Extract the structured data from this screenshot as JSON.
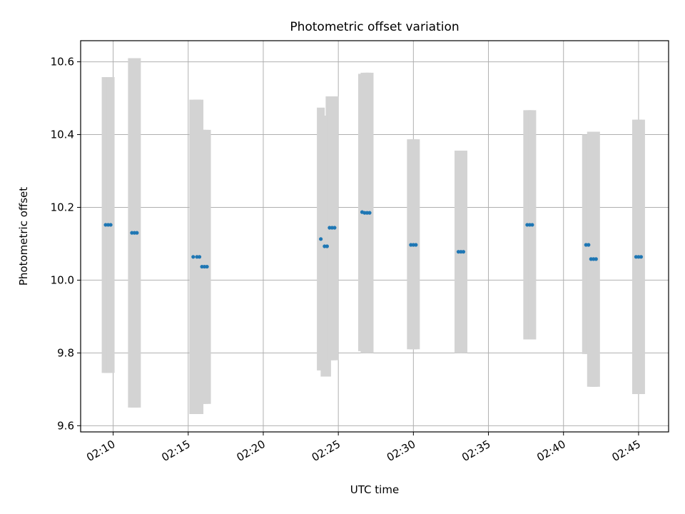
{
  "chart_data": {
    "type": "scatter",
    "title": "Photometric offset variation",
    "xlabel": "UTC time",
    "ylabel": "Photometric offset",
    "x_axis": "time",
    "xlim": [
      "02:07:50",
      "02:47:00"
    ],
    "ylim": [
      9.583,
      10.658
    ],
    "x_ticks": [
      "02:10",
      "02:15",
      "02:20",
      "02:25",
      "02:30",
      "02:35",
      "02:40",
      "02:45"
    ],
    "y_ticks": [
      9.6,
      9.8,
      10.0,
      10.2,
      10.4,
      10.6
    ],
    "y_tick_labels": [
      "9.6",
      "9.8",
      "10.0",
      "10.2",
      "10.4",
      "10.6"
    ],
    "grid": true,
    "colors": {
      "marker": "#1f77b4",
      "errorbar": "#d3d3d3",
      "grid": "#b0b0b0"
    },
    "points": [
      {
        "t": "02:09:30",
        "y": 10.152,
        "lo": 9.745,
        "hi": 10.558
      },
      {
        "t": "02:09:40",
        "y": 10.152,
        "lo": 9.745,
        "hi": 10.558
      },
      {
        "t": "02:09:50",
        "y": 10.152,
        "lo": 9.745,
        "hi": 10.558
      },
      {
        "t": "02:11:15",
        "y": 10.13,
        "lo": 9.65,
        "hi": 10.61
      },
      {
        "t": "02:11:25",
        "y": 10.13,
        "lo": 9.65,
        "hi": 10.61
      },
      {
        "t": "02:11:35",
        "y": 10.13,
        "lo": 9.65,
        "hi": 10.61
      },
      {
        "t": "02:15:20",
        "y": 10.064,
        "lo": 9.632,
        "hi": 10.496
      },
      {
        "t": "02:15:35",
        "y": 10.064,
        "lo": 9.632,
        "hi": 10.496
      },
      {
        "t": "02:15:45",
        "y": 10.064,
        "lo": 9.632,
        "hi": 10.496
      },
      {
        "t": "02:15:55",
        "y": 10.037,
        "lo": 9.66,
        "hi": 10.413
      },
      {
        "t": "02:16:05",
        "y": 10.037,
        "lo": 9.66,
        "hi": 10.413
      },
      {
        "t": "02:16:15",
        "y": 10.037,
        "lo": 9.66,
        "hi": 10.413
      },
      {
        "t": "02:23:50",
        "y": 10.113,
        "lo": 9.752,
        "hi": 10.474
      },
      {
        "t": "02:24:05",
        "y": 10.093,
        "lo": 9.735,
        "hi": 10.452
      },
      {
        "t": "02:24:15",
        "y": 10.093,
        "lo": 9.735,
        "hi": 10.452
      },
      {
        "t": "02:24:25",
        "y": 10.144,
        "lo": 9.78,
        "hi": 10.505
      },
      {
        "t": "02:24:35",
        "y": 10.144,
        "lo": 9.78,
        "hi": 10.505
      },
      {
        "t": "02:24:45",
        "y": 10.144,
        "lo": 9.78,
        "hi": 10.505
      },
      {
        "t": "02:26:35",
        "y": 10.187,
        "lo": 9.805,
        "hi": 10.567
      },
      {
        "t": "02:26:45",
        "y": 10.185,
        "lo": 9.8,
        "hi": 10.57
      },
      {
        "t": "02:26:55",
        "y": 10.185,
        "lo": 9.8,
        "hi": 10.57
      },
      {
        "t": "02:27:05",
        "y": 10.185,
        "lo": 9.8,
        "hi": 10.57
      },
      {
        "t": "02:29:50",
        "y": 10.097,
        "lo": 9.81,
        "hi": 10.387
      },
      {
        "t": "02:30:00",
        "y": 10.097,
        "lo": 9.81,
        "hi": 10.387
      },
      {
        "t": "02:30:10",
        "y": 10.097,
        "lo": 9.81,
        "hi": 10.387
      },
      {
        "t": "02:33:00",
        "y": 10.078,
        "lo": 9.8,
        "hi": 10.356
      },
      {
        "t": "02:33:10",
        "y": 10.078,
        "lo": 9.8,
        "hi": 10.356
      },
      {
        "t": "02:33:20",
        "y": 10.078,
        "lo": 9.8,
        "hi": 10.356
      },
      {
        "t": "02:37:35",
        "y": 10.152,
        "lo": 9.837,
        "hi": 10.467
      },
      {
        "t": "02:37:45",
        "y": 10.152,
        "lo": 9.837,
        "hi": 10.467
      },
      {
        "t": "02:37:55",
        "y": 10.152,
        "lo": 9.837,
        "hi": 10.467
      },
      {
        "t": "02:41:30",
        "y": 10.097,
        "lo": 9.797,
        "hi": 10.4
      },
      {
        "t": "02:41:40",
        "y": 10.097,
        "lo": 9.797,
        "hi": 10.4
      },
      {
        "t": "02:41:50",
        "y": 10.058,
        "lo": 9.707,
        "hi": 10.408
      },
      {
        "t": "02:42:00",
        "y": 10.058,
        "lo": 9.707,
        "hi": 10.408
      },
      {
        "t": "02:42:10",
        "y": 10.058,
        "lo": 9.707,
        "hi": 10.408
      },
      {
        "t": "02:44:50",
        "y": 10.064,
        "lo": 9.687,
        "hi": 10.441
      },
      {
        "t": "02:45:00",
        "y": 10.064,
        "lo": 9.687,
        "hi": 10.441
      },
      {
        "t": "02:45:10",
        "y": 10.064,
        "lo": 9.687,
        "hi": 10.441
      }
    ]
  }
}
